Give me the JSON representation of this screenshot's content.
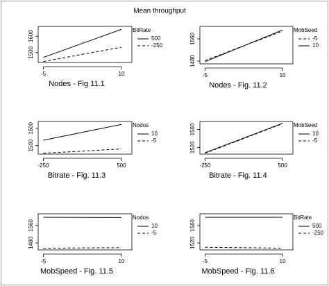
{
  "title": "Mean throughput",
  "chart_data": [
    {
      "type": "line",
      "x_label": "Nodes - Fig 11.1",
      "legend_title": "BitRate",
      "x": [
        -5,
        10
      ],
      "xlim": [
        -6,
        12
      ],
      "xticks": [
        -5,
        10
      ],
      "ylim": [
        1440,
        1660
      ],
      "yticks": [
        1500,
        1600
      ],
      "series": [
        {
          "name": "500",
          "color": "#000000",
          "dash": "solid",
          "values": [
            1471,
            1642
          ]
        },
        {
          "name": "-250",
          "color": "#000000",
          "dash": "dashed",
          "values": [
            1446,
            1533
          ]
        }
      ]
    },
    {
      "type": "line",
      "x_label": "Nodes - Fig. 11.2",
      "legend_title": "MobSeed",
      "x": [
        -5,
        10
      ],
      "xlim": [
        -6,
        12
      ],
      "xticks": [
        -5,
        10
      ],
      "ylim": [
        1470,
        1605
      ],
      "yticks": [
        1480,
        1560
      ],
      "series": [
        {
          "name": "-5",
          "color": "#000000",
          "dash": "dashed",
          "values": [
            1482,
            1588
          ]
        },
        {
          "name": "10",
          "color": "#000000",
          "dash": "solid",
          "values": [
            1478,
            1592
          ]
        }
      ]
    },
    {
      "type": "line",
      "x_label": "Bitrate - Fig. 11.3",
      "legend_title": "Nodos",
      "x": [
        -250,
        500
      ],
      "xlim": [
        -300,
        600
      ],
      "xticks": [
        -250,
        500
      ],
      "ylim": [
        1450,
        1640
      ],
      "yticks": [
        1500,
        1600
      ],
      "series": [
        {
          "name": "10",
          "color": "#000000",
          "dash": "solid",
          "values": [
            1531,
            1623
          ]
        },
        {
          "name": "-5",
          "color": "#000000",
          "dash": "dashed",
          "values": [
            1455,
            1480
          ]
        }
      ]
    },
    {
      "type": "line",
      "x_label": "Bitrate - Fig. 11.4",
      "legend_title": "MobSeed",
      "x": [
        -250,
        500
      ],
      "xlim": [
        -300,
        600
      ],
      "xticks": [
        -250,
        500
      ],
      "ylim": [
        1505,
        1578
      ],
      "yticks": [
        1520,
        1560
      ],
      "series": [
        {
          "name": "10",
          "color": "#000000",
          "dash": "solid",
          "values": [
            1508,
            1574
          ]
        },
        {
          "name": "-5",
          "color": "#000000",
          "dash": "dashed",
          "values": [
            1507,
            1573
          ]
        }
      ]
    },
    {
      "type": "line",
      "x_label": "MobSpeed - Fig. 11.5",
      "legend_title": "Nodos",
      "x": [
        -5,
        10
      ],
      "xlim": [
        -6,
        12
      ],
      "xticks": [
        -5,
        10
      ],
      "ylim": [
        1448,
        1614
      ],
      "yticks": [
        1480,
        1560
      ],
      "series": [
        {
          "name": "10",
          "color": "#000000",
          "dash": "solid",
          "values": [
            1598,
            1597
          ]
        },
        {
          "name": "-5",
          "color": "#000000",
          "dash": "dashed",
          "values": [
            1456,
            1458
          ]
        }
      ]
    },
    {
      "type": "line",
      "x_label": "MobSpeed - Fig. 11.6",
      "legend_title": "BitRate",
      "x": [
        -5,
        10
      ],
      "xlim": [
        -6,
        12
      ],
      "xticks": [
        -5,
        10
      ],
      "ylim": [
        1504,
        1587
      ],
      "yticks": [
        1520,
        1560
      ],
      "series": [
        {
          "name": "500",
          "color": "#000000",
          "dash": "solid",
          "values": [
            1579,
            1579
          ]
        },
        {
          "name": "-250",
          "color": "#000000",
          "dash": "dashed",
          "values": [
            1510,
            1508
          ]
        }
      ]
    }
  ]
}
